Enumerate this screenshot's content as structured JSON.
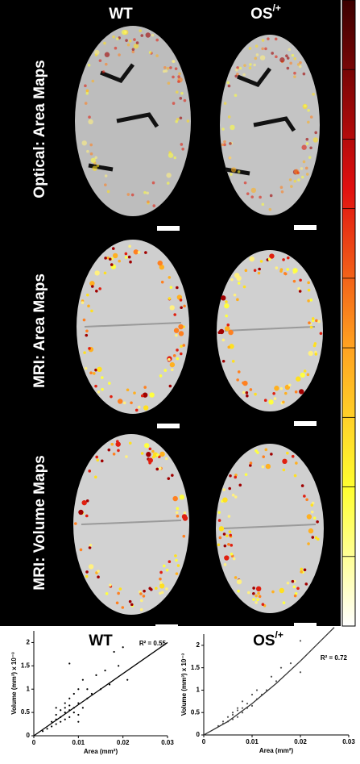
{
  "figure": {
    "columns": [
      "WT",
      {
        "base": "OS",
        "sup": "/+"
      }
    ],
    "rows": [
      "Optical: Area Maps",
      "MRI: Area Maps",
      "MRI: Volume Maps"
    ]
  },
  "chart_data": [
    {
      "type": "scatter",
      "title": "WT",
      "annotation": "R² = 0.55",
      "xlabel": "Area (mm²)",
      "ylabel": "Volume (mm³) x 10⁻³",
      "xlim": [
        0,
        0.03
      ],
      "xticks": [
        0,
        0.01,
        0.02,
        0.03
      ],
      "ylim": [
        0,
        2.25
      ],
      "yticks": [
        0,
        0.5,
        1,
        1.5,
        2
      ],
      "color": "#000000",
      "x": [
        0.002,
        0.003,
        0.004,
        0.004,
        0.005,
        0.005,
        0.005,
        0.006,
        0.006,
        0.006,
        0.007,
        0.007,
        0.007,
        0.007,
        0.008,
        0.008,
        0.008,
        0.008,
        0.009,
        0.009,
        0.009,
        0.01,
        0.01,
        0.01,
        0.011,
        0.011,
        0.012,
        0.012,
        0.013,
        0.014,
        0.015,
        0.016,
        0.017,
        0.018,
        0.019,
        0.02,
        0.021,
        0.008,
        0.01,
        0.005
      ],
      "y": [
        0.1,
        0.15,
        0.2,
        0.3,
        0.25,
        0.35,
        0.45,
        0.3,
        0.4,
        0.55,
        0.35,
        0.5,
        0.6,
        0.7,
        0.4,
        0.55,
        0.65,
        0.8,
        0.5,
        0.6,
        0.9,
        0.45,
        0.7,
        1.0,
        0.6,
        1.2,
        0.8,
        1.0,
        0.9,
        1.3,
        1.0,
        1.4,
        1.1,
        1.8,
        1.5,
        1.9,
        1.2,
        1.55,
        0.3,
        0.6
      ],
      "fit": {
        "x": [
          0,
          0.03
        ],
        "y": [
          0,
          2
        ],
        "color": "#000000"
      }
    },
    {
      "type": "scatter",
      "title": {
        "base": "OS",
        "sup": "/+"
      },
      "annotation": "R² = 0.72",
      "xlabel": "Area (mm²)",
      "ylabel": "Volume (mm³) x 10⁻³",
      "xlim": [
        0,
        0.03
      ],
      "xticks": [
        0,
        0.01,
        0.02,
        0.03
      ],
      "ylim": [
        0,
        2.25
      ],
      "yticks": [
        0,
        0.5,
        1,
        1.5,
        2
      ],
      "color": "#555555",
      "x": [
        0.003,
        0.004,
        0.004,
        0.005,
        0.005,
        0.006,
        0.006,
        0.006,
        0.007,
        0.007,
        0.007,
        0.008,
        0.008,
        0.008,
        0.009,
        0.009,
        0.01,
        0.01,
        0.011,
        0.011,
        0.012,
        0.013,
        0.014,
        0.015,
        0.016,
        0.018,
        0.02,
        0.02
      ],
      "y": [
        0.2,
        0.25,
        0.3,
        0.3,
        0.4,
        0.35,
        0.45,
        0.5,
        0.4,
        0.55,
        0.6,
        0.5,
        0.6,
        0.75,
        0.6,
        0.7,
        0.65,
        0.9,
        0.8,
        1.0,
        0.9,
        1.0,
        1.3,
        1.2,
        1.5,
        1.6,
        2.1,
        1.4
      ],
      "fit": {
        "x": [
          0,
          0.005,
          0.01,
          0.015,
          0.02,
          0.027
        ],
        "y": [
          0,
          0.3,
          0.7,
          1.15,
          1.65,
          2.4
        ],
        "color": "#333333"
      }
    }
  ]
}
